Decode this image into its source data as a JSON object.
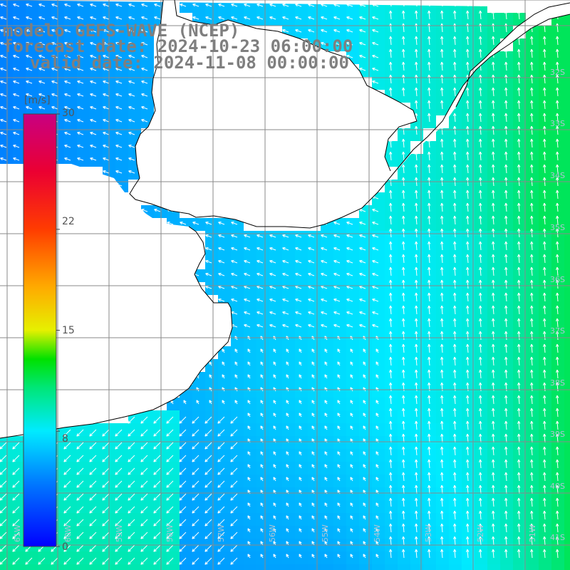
{
  "title": {
    "line1": "modelo GEFS-WAVE (NCEP)",
    "line2": "forecast date: 2024-10-23 06:00:00",
    "line3": "valid date: 2024-11-08 00:00:00"
  },
  "colorbar": {
    "unit": "[m/s]",
    "ticks": [
      "30",
      "22",
      "15",
      "8",
      "0"
    ],
    "tick_values": [
      30,
      22,
      15,
      8,
      0
    ],
    "min": 0,
    "max": 30
  },
  "lat_labels": [
    "32S",
    "33S",
    "34S",
    "35S",
    "36S",
    "37S",
    "38S",
    "39S",
    "40S",
    "41S"
  ],
  "lon_labels": [
    "61W",
    "60W",
    "59W",
    "58W",
    "57W",
    "56W",
    "55W",
    "54W",
    "53W",
    "52W",
    "51W"
  ],
  "colors": {
    "low": "#0000ff",
    "mid": "#00e0ff",
    "high": "#00ff00",
    "land": "#ffffff",
    "grid": "#888888",
    "coast": "#000000",
    "arrows": "#ffffff"
  },
  "map_data": {
    "field": "wind speed (m/s) with direction vectors",
    "region": "South Atlantic off Uruguay and Buenos Aires",
    "speed_range_shown": [
      3,
      11
    ]
  }
}
